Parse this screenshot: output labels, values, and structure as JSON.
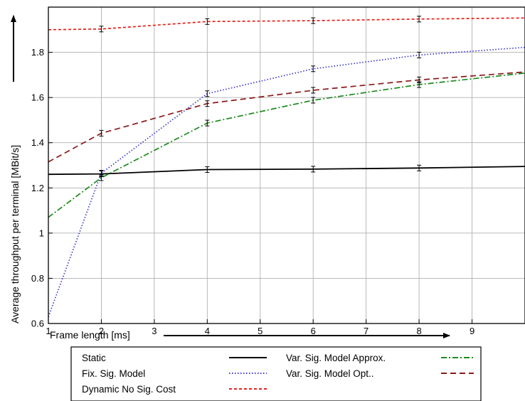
{
  "chart_data": {
    "type": "line",
    "xlabel": "Frame length [ms]",
    "ylabel": "Average throughput per terminal [MBit/s]",
    "xlim": [
      1,
      10
    ],
    "ylim": [
      0.6,
      2.0
    ],
    "xticks": [
      "1",
      "2",
      "3",
      "4",
      "5",
      "6",
      "7",
      "8",
      "9"
    ],
    "yticks": [
      "0.6",
      "0.8",
      "1",
      "1.2",
      "1.4",
      "1.6",
      "1.8"
    ],
    "grid": true,
    "legend_position": "below",
    "series": [
      {
        "name": "Static",
        "color": "#000000",
        "dash": "solid",
        "x": [
          1,
          2,
          4,
          6,
          8,
          10
        ],
        "y": [
          1.26,
          1.262,
          1.281,
          1.283,
          1.288,
          1.295
        ],
        "errx": [
          2,
          4,
          6,
          8
        ],
        "erry": [
          1.262,
          1.281,
          1.283,
          1.288
        ]
      },
      {
        "name": "Fix. Sig. Model",
        "color": "#3a3ad8",
        "dash": "dotted",
        "x": [
          1,
          2,
          4,
          6,
          8,
          10
        ],
        "y": [
          0.63,
          1.265,
          1.617,
          1.727,
          1.788,
          1.822
        ],
        "errx": [
          2,
          4,
          6,
          8
        ],
        "erry": [
          1.265,
          1.617,
          1.727,
          1.788
        ]
      },
      {
        "name": "Dynamic No Sig. Cost",
        "color": "#e8201a",
        "dash": "dashed-fine",
        "x": [
          1,
          2,
          4,
          6,
          8,
          10
        ],
        "y": [
          1.9,
          1.903,
          1.936,
          1.94,
          1.947,
          1.952
        ],
        "errx": [
          2,
          4,
          6,
          8
        ],
        "erry": [
          1.903,
          1.936,
          1.94,
          1.947
        ]
      },
      {
        "name": "Var. Sig. Model Approx.",
        "color": "#1e8a1e",
        "dash": "dashdot",
        "x": [
          1,
          2,
          4,
          6,
          8,
          10
        ],
        "y": [
          1.07,
          1.245,
          1.487,
          1.588,
          1.657,
          1.708
        ],
        "errx": [
          2,
          4,
          6,
          8
        ],
        "erry": [
          1.245,
          1.487,
          1.588,
          1.657
        ]
      },
      {
        "name": "Var. Sig. Model Opt..",
        "color": "#8b1a1a",
        "dash": "dashed",
        "x": [
          1,
          2,
          4,
          6,
          8,
          10
        ],
        "y": [
          1.315,
          1.442,
          1.573,
          1.632,
          1.678,
          1.713
        ],
        "errx": [
          2,
          4,
          6,
          8
        ],
        "erry": [
          1.442,
          1.573,
          1.632,
          1.678
        ]
      }
    ]
  }
}
